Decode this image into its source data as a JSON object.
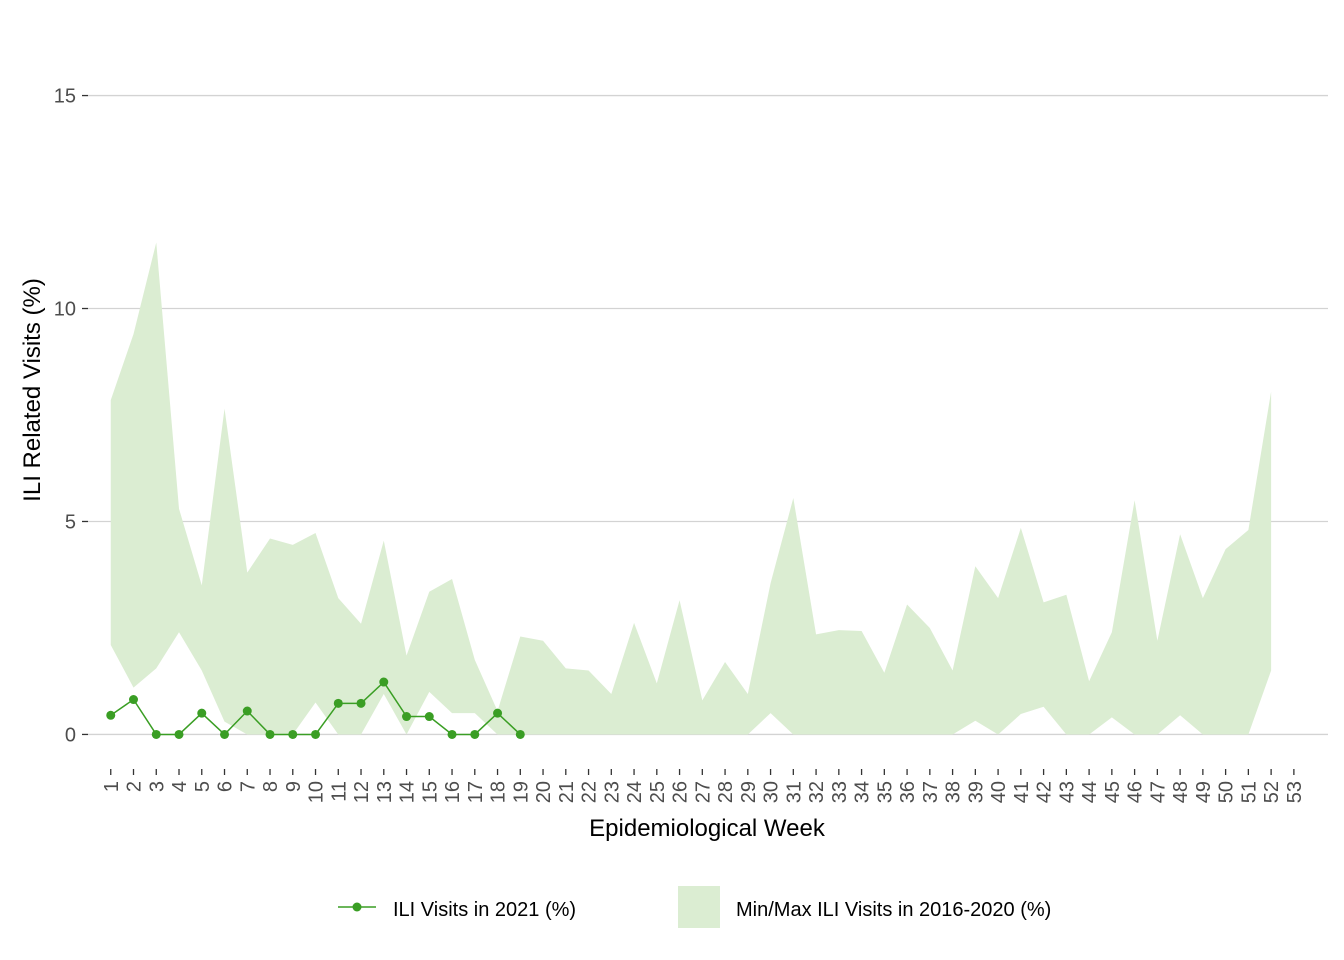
{
  "chart_data": {
    "type": "line",
    "xlabel": "Epidemiological Week",
    "ylabel": "ILI Related Visits (%)",
    "ylim": [
      -0.6,
      15.6
    ],
    "yticks": [
      0,
      5,
      10,
      15
    ],
    "xlim": [
      0,
      54.5
    ],
    "categories": [
      1,
      2,
      3,
      4,
      5,
      6,
      7,
      8,
      9,
      10,
      11,
      12,
      13,
      14,
      15,
      16,
      17,
      18,
      19,
      20,
      21,
      22,
      23,
      24,
      25,
      26,
      27,
      28,
      29,
      30,
      31,
      32,
      33,
      34,
      35,
      36,
      37,
      38,
      39,
      40,
      41,
      42,
      43,
      44,
      45,
      46,
      47,
      48,
      49,
      50,
      51,
      52,
      53
    ],
    "grid": "horizontal",
    "legend_position": "bottom",
    "series": [
      {
        "name": "ILI Visits in 2021 (%)",
        "kind": "line-points",
        "color": "#3a9e24",
        "x": [
          1,
          2,
          3,
          4,
          5,
          6,
          7,
          8,
          9,
          10,
          11,
          12,
          13,
          14,
          15,
          16,
          17,
          18,
          19
        ],
        "values": [
          0.45,
          0.82,
          0.0,
          0.0,
          0.5,
          0.0,
          0.55,
          0.0,
          0.0,
          0.0,
          0.73,
          0.73,
          1.23,
          0.42,
          0.42,
          0.0,
          0.0,
          0.5,
          0.0
        ]
      },
      {
        "name": "Min/Max ILI Visits in 2016-2020 (%)",
        "kind": "ribbon",
        "color": "#dbedd2",
        "x": [
          1,
          2,
          3,
          4,
          5,
          6,
          7,
          8,
          9,
          10,
          11,
          12,
          13,
          14,
          15,
          16,
          17,
          18,
          19,
          20,
          21,
          22,
          23,
          24,
          25,
          26,
          27,
          28,
          29,
          30,
          31,
          32,
          33,
          34,
          35,
          36,
          37,
          38,
          39,
          40,
          41,
          42,
          43,
          44,
          45,
          46,
          47,
          48,
          49,
          50,
          51,
          52
        ],
        "min": [
          2.1,
          1.1,
          1.55,
          2.4,
          1.5,
          0.3,
          0.0,
          0.0,
          0.0,
          0.75,
          0.0,
          0.0,
          0.95,
          0.0,
          1.0,
          0.5,
          0.5,
          0.0,
          0.0,
          0.0,
          0.0,
          0.0,
          0.0,
          0.0,
          0.0,
          0.0,
          0.0,
          0.0,
          0.0,
          0.5,
          0.0,
          0.0,
          0.0,
          0.0,
          0.0,
          0.0,
          0.0,
          0.0,
          0.32,
          0.0,
          0.48,
          0.65,
          0.0,
          0.0,
          0.4,
          0.0,
          0.0,
          0.45,
          0.0,
          0.0,
          0.0,
          1.5
        ],
        "max": [
          7.85,
          9.4,
          11.55,
          5.3,
          3.5,
          7.65,
          3.8,
          4.6,
          4.45,
          4.73,
          3.2,
          2.6,
          4.55,
          1.85,
          3.35,
          3.65,
          1.75,
          0.55,
          2.3,
          2.2,
          1.55,
          1.5,
          0.95,
          2.62,
          1.2,
          3.15,
          0.8,
          1.7,
          0.95,
          3.55,
          5.55,
          2.35,
          2.45,
          2.43,
          1.45,
          3.05,
          2.5,
          1.5,
          3.95,
          3.2,
          4.85,
          3.1,
          3.28,
          1.25,
          2.4,
          5.5,
          2.2,
          4.7,
          3.2,
          4.35,
          4.8,
          8.05
        ]
      }
    ]
  }
}
